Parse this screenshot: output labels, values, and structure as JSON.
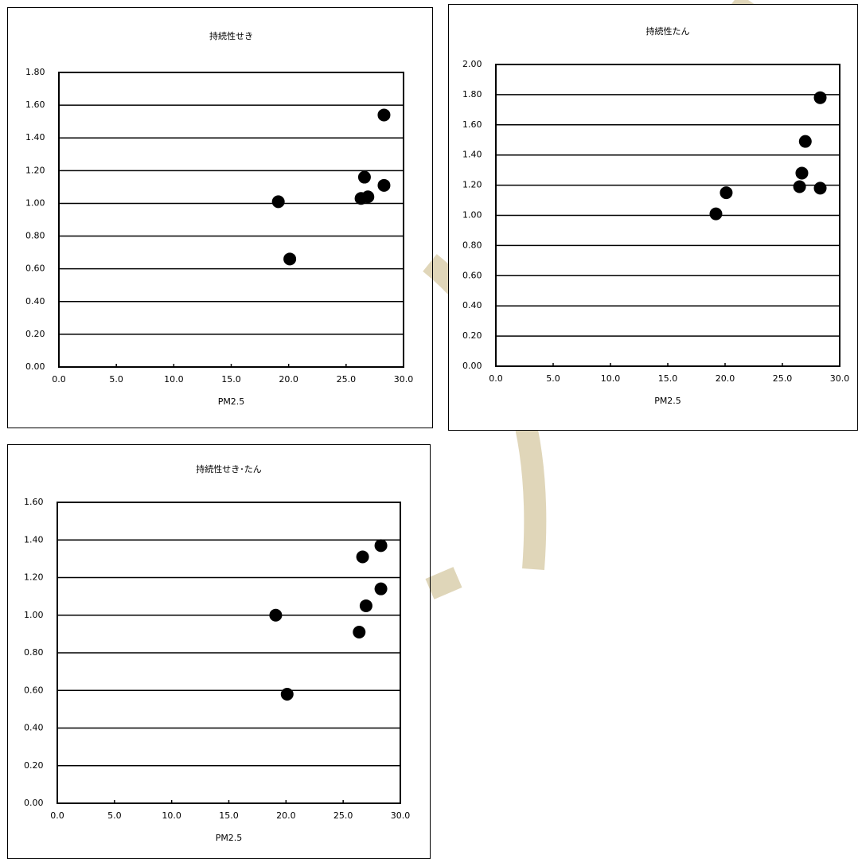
{
  "chart_data": [
    {
      "type": "scatter",
      "title": "持続性せき",
      "x_label": "PM2.5",
      "color": "#000000",
      "grid": true,
      "x": [
        19.1,
        20.1,
        28.3,
        26.6,
        26.3,
        26.9,
        28.3
      ],
      "values": [
        1.01,
        0.66,
        1.54,
        1.16,
        1.03,
        1.04,
        1.11
      ],
      "xlim": [
        0,
        30
      ],
      "xticks": [
        {
          "value": 0,
          "label": "0.0"
        },
        {
          "value": 5,
          "label": "5.0"
        },
        {
          "value": 10,
          "label": "10.0"
        },
        {
          "value": 15,
          "label": "15.0"
        },
        {
          "value": 20,
          "label": "20.0"
        },
        {
          "value": 25,
          "label": "25.0"
        },
        {
          "value": 30,
          "label": "30.0"
        }
      ],
      "ylim": [
        0,
        1.8
      ],
      "yticks": [
        {
          "value": 0,
          "label": "0.00"
        },
        {
          "value": 0.2,
          "label": "0.20"
        },
        {
          "value": 0.4,
          "label": "0.40"
        },
        {
          "value": 0.6,
          "label": "0.60"
        },
        {
          "value": 0.8,
          "label": "0.80"
        },
        {
          "value": 1,
          "label": "1.00"
        },
        {
          "value": 1.2,
          "label": "1.20"
        },
        {
          "value": 1.4,
          "label": "1.40"
        },
        {
          "value": 1.6,
          "label": "1.60"
        },
        {
          "value": 1.8,
          "label": "1.80"
        }
      ]
    },
    {
      "type": "scatter",
      "title": "持続性たん",
      "x_label": "PM2.5",
      "color": "#000000",
      "grid": true,
      "x": [
        28.3,
        27.0,
        26.7,
        26.5,
        28.3,
        20.1,
        19.2
      ],
      "values": [
        1.78,
        1.49,
        1.28,
        1.19,
        1.18,
        1.15,
        1.01
      ],
      "xlim": [
        0,
        30
      ],
      "xticks": [
        {
          "value": 0,
          "label": "0.0"
        },
        {
          "value": 5,
          "label": "5.0"
        },
        {
          "value": 10,
          "label": "10.0"
        },
        {
          "value": 15,
          "label": "15.0"
        },
        {
          "value": 20,
          "label": "20.0"
        },
        {
          "value": 25,
          "label": "25.0"
        },
        {
          "value": 30,
          "label": "30.0"
        }
      ],
      "ylim": [
        0,
        2
      ],
      "yticks": [
        {
          "value": 0,
          "label": "0.00"
        },
        {
          "value": 0.2,
          "label": "0.20"
        },
        {
          "value": 0.4,
          "label": "0.40"
        },
        {
          "value": 0.6,
          "label": "0.60"
        },
        {
          "value": 0.8,
          "label": "0.80"
        },
        {
          "value": 1,
          "label": "1.00"
        },
        {
          "value": 1.2,
          "label": "1.20"
        },
        {
          "value": 1.4,
          "label": "1.40"
        },
        {
          "value": 1.6,
          "label": "1.60"
        },
        {
          "value": 1.8,
          "label": "1.80"
        },
        {
          "value": 2,
          "label": "2.00"
        }
      ]
    },
    {
      "type": "scatter",
      "title": "持続性せき･たん",
      "x_label": "PM2.5",
      "color": "#000000",
      "grid": true,
      "x": [
        28.3,
        26.7,
        28.3,
        27.0,
        26.4,
        19.1,
        20.1
      ],
      "values": [
        1.37,
        1.31,
        1.14,
        1.05,
        0.91,
        1.0,
        0.58
      ],
      "xlim": [
        0,
        30
      ],
      "xticks": [
        {
          "value": 0,
          "label": "0.0"
        },
        {
          "value": 5,
          "label": "5.0"
        },
        {
          "value": 10,
          "label": "10.0"
        },
        {
          "value": 15,
          "label": "15.0"
        },
        {
          "value": 20,
          "label": "20.0"
        },
        {
          "value": 25,
          "label": "25.0"
        },
        {
          "value": 30,
          "label": "30.0"
        }
      ],
      "ylim": [
        0,
        1.6
      ],
      "yticks": [
        {
          "value": 0,
          "label": "0.00"
        },
        {
          "value": 0.2,
          "label": "0.20"
        },
        {
          "value": 0.4,
          "label": "0.40"
        },
        {
          "value": 0.6,
          "label": "0.60"
        },
        {
          "value": 0.8,
          "label": "0.80"
        },
        {
          "value": 1,
          "label": "1.00"
        },
        {
          "value": 1.2,
          "label": "1.20"
        },
        {
          "value": 1.4,
          "label": "1.40"
        },
        {
          "value": 1.6,
          "label": "1.60"
        }
      ]
    }
  ]
}
